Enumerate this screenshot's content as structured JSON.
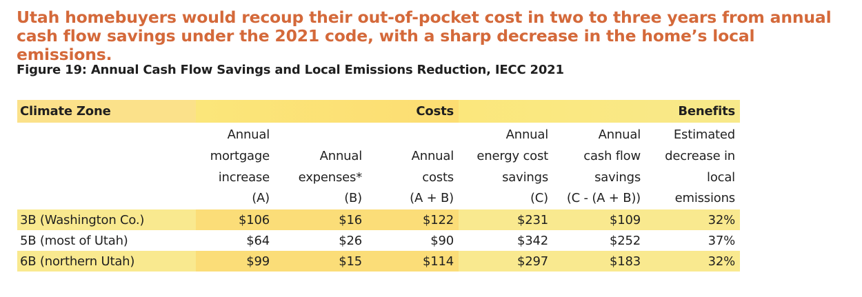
{
  "headline": "Utah homebuyers would recoup their out-of-pocket cost in two to three years from annual cash flow savings under the 2021 code, with a sharp decrease in the home’s local emissions.",
  "figure_title": "Figure 19: Annual Cash Flow Savings and Local Emissions Reduction, IECC 2021",
  "table": {
    "group_headers": {
      "zone": "Climate Zone",
      "costs": "Costs",
      "benefits": "Benefits"
    },
    "columns": [
      [
        "Annual",
        "mortgage",
        "increase",
        "(A)"
      ],
      [
        "Annual",
        "expenses*",
        "(B)"
      ],
      [
        "Annual",
        "costs",
        "(A + B)"
      ],
      [
        "Annual",
        "energy cost",
        "savings",
        "(C)"
      ],
      [
        "Annual",
        "cash flow",
        "savings",
        "(C - (A + B))"
      ],
      [
        "Estimated",
        "decrease in",
        "local",
        "emissions"
      ]
    ],
    "rows": [
      {
        "zone": "3B (Washington Co.)",
        "a": "$106",
        "b": "$16",
        "ab": "$122",
        "c": "$231",
        "cf": "$109",
        "em": "32%"
      },
      {
        "zone": "5B (most of Utah)",
        "a": "$64",
        "b": "$26",
        "ab": "$90",
        "c": "$342",
        "cf": "$252",
        "em": "37%"
      },
      {
        "zone": "6B (northern Utah)",
        "a": "$99",
        "b": "$15",
        "ab": "$114",
        "c": "$297",
        "cf": "$183",
        "em": "32%"
      }
    ]
  }
}
